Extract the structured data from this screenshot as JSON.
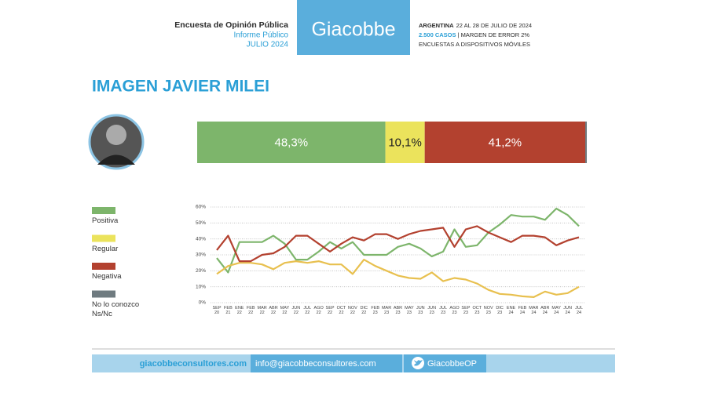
{
  "header": {
    "survey": "Encuesta de Opinión Pública",
    "report": "Informe Público",
    "date": "JULIO 2024",
    "brand": "Giacobbe",
    "country": "ARGENTINA",
    "period": "22 AL 28 DE JULIO DE 2024",
    "cases": "2.500 CASOS",
    "margin": "| MARGEN DE ERROR 2%",
    "method": "ENCUESTAS A DISPOSITIVOS MÓVILES"
  },
  "title": "IMAGEN JAVIER MILEI",
  "chart_data": [
    {
      "type": "bar",
      "stacked": true,
      "orientation": "horizontal",
      "xlim": [
        0,
        100
      ],
      "series": [
        {
          "name": "Positiva",
          "color": "#7db56b",
          "values": [
            48.3
          ],
          "value_labels": [
            "48,3%"
          ]
        },
        {
          "name": "Regular",
          "color": "#ebe35c",
          "values": [
            10.1
          ],
          "value_labels": [
            "10,1%"
          ]
        },
        {
          "name": "Negativa",
          "color": "#b3412f",
          "values": [
            41.2
          ],
          "value_labels": [
            "41,2%"
          ]
        },
        {
          "name": "No lo conozco Ns/Nc",
          "color": "#6f7b80",
          "values": [
            0.4
          ]
        }
      ]
    },
    {
      "type": "line",
      "grid": true,
      "categories": [
        "SEP 20",
        "FEB 21",
        "ENE 22",
        "FEB 22",
        "MAR 22",
        "ABR 22",
        "MAY 22",
        "JUN 22",
        "JUL 22",
        "AGO 22",
        "SEP 22",
        "OCT 22",
        "NOV 22",
        "DIC 22",
        "FEB 23",
        "MAR 23",
        "ABR 23",
        "MAY 23",
        "JUN 23",
        "JUN 23",
        "JUL 23",
        "AGO 23",
        "SEP 23",
        "OCT 23",
        "NOV 23",
        "DIC 23",
        "ENE 24",
        "FEB 24",
        "MAR 24",
        "ABR 24",
        "MAY 24",
        "JUN 24",
        "JUL 24"
      ],
      "ylim": [
        0,
        60
      ],
      "yticks": [
        {
          "value": 0,
          "label": "0%"
        },
        {
          "value": 10,
          "label": "10%"
        },
        {
          "value": 20,
          "label": "20%"
        },
        {
          "value": 30,
          "label": "30%"
        },
        {
          "value": 40,
          "label": "40%"
        },
        {
          "value": 50,
          "label": "50%"
        },
        {
          "value": 60,
          "label": "60%"
        }
      ],
      "series": [
        {
          "color": "#7db56b",
          "values": [
            28,
            19,
            38,
            38,
            38,
            42,
            37,
            27,
            27,
            32,
            38,
            34,
            38,
            30,
            30,
            30,
            35,
            37,
            34,
            29,
            32,
            46,
            35,
            36,
            44,
            49,
            55,
            54,
            54,
            52,
            59,
            55,
            48
          ]
        },
        {
          "color": "#e8c04f",
          "values": [
            18,
            23,
            25,
            25,
            24,
            21,
            25,
            26,
            25,
            26,
            24,
            24,
            18,
            27,
            23,
            20,
            17,
            15.5,
            15,
            19,
            13.5,
            15.5,
            14.5,
            12,
            8,
            5.5,
            5,
            4,
            3.5,
            7,
            5,
            6,
            10
          ]
        },
        {
          "color": "#b3412f",
          "values": [
            33,
            42,
            26,
            26,
            30,
            31,
            35,
            42,
            42,
            37,
            32,
            37,
            41,
            39,
            43,
            43,
            40,
            43,
            45,
            46,
            47,
            35,
            46,
            48,
            44,
            41,
            38,
            42,
            42,
            41,
            36,
            39,
            41
          ]
        }
      ]
    }
  ],
  "footer": {
    "web": "giacobbeconsultores.com",
    "email": "info@giacobbeconsultores.com",
    "twitter": "GiacobbeOP"
  }
}
